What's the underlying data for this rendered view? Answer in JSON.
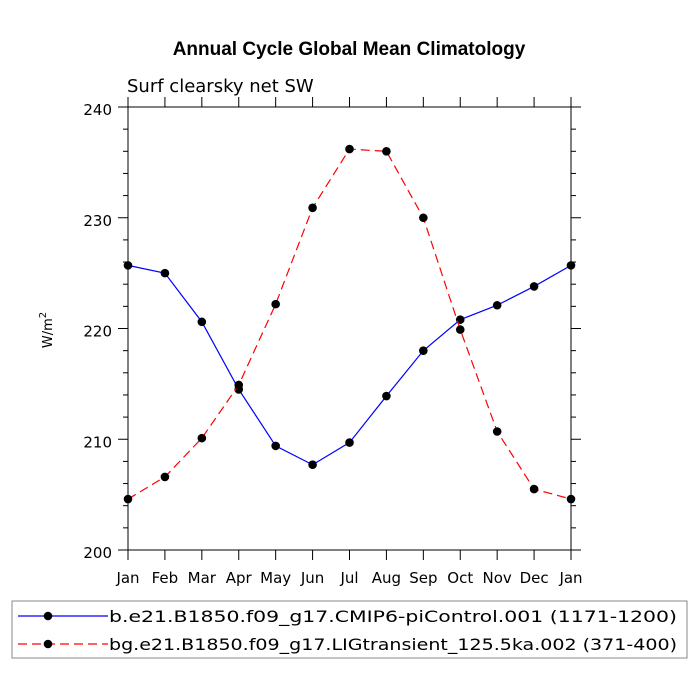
{
  "chart_data": {
    "type": "line",
    "title": "Annual Cycle Global Mean Climatology",
    "subtitle": "Surf clearsky net SW",
    "xlabel": "",
    "ylabel": "W/m",
    "ylabel_sup": "2",
    "ylim": [
      200,
      240
    ],
    "yticks": [
      "200",
      "210",
      "220",
      "230",
      "240"
    ],
    "categories": [
      "Jan",
      "Feb",
      "Mar",
      "Apr",
      "May",
      "Jun",
      "Jul",
      "Aug",
      "Sep",
      "Oct",
      "Nov",
      "Dec",
      "Jan"
    ],
    "series": [
      {
        "name": "b.e21.B1850.f09_g17.CMIP6-piControl.001 (1171-1200)",
        "color": "#0000ff",
        "dash": "solid",
        "values": [
          225.7,
          225.0,
          220.6,
          214.5,
          209.4,
          207.7,
          209.7,
          213.9,
          218.0,
          220.8,
          222.1,
          223.8,
          225.7
        ]
      },
      {
        "name": "bg.e21.B1850.f09_g17.LIGtransient_125.5ka.002 (371-400)",
        "color": "#ff0000",
        "dash": "dashed",
        "values": [
          204.6,
          206.6,
          210.1,
          214.9,
          222.2,
          230.9,
          236.2,
          236.0,
          230.0,
          219.9,
          210.7,
          205.5,
          204.6
        ]
      }
    ]
  }
}
